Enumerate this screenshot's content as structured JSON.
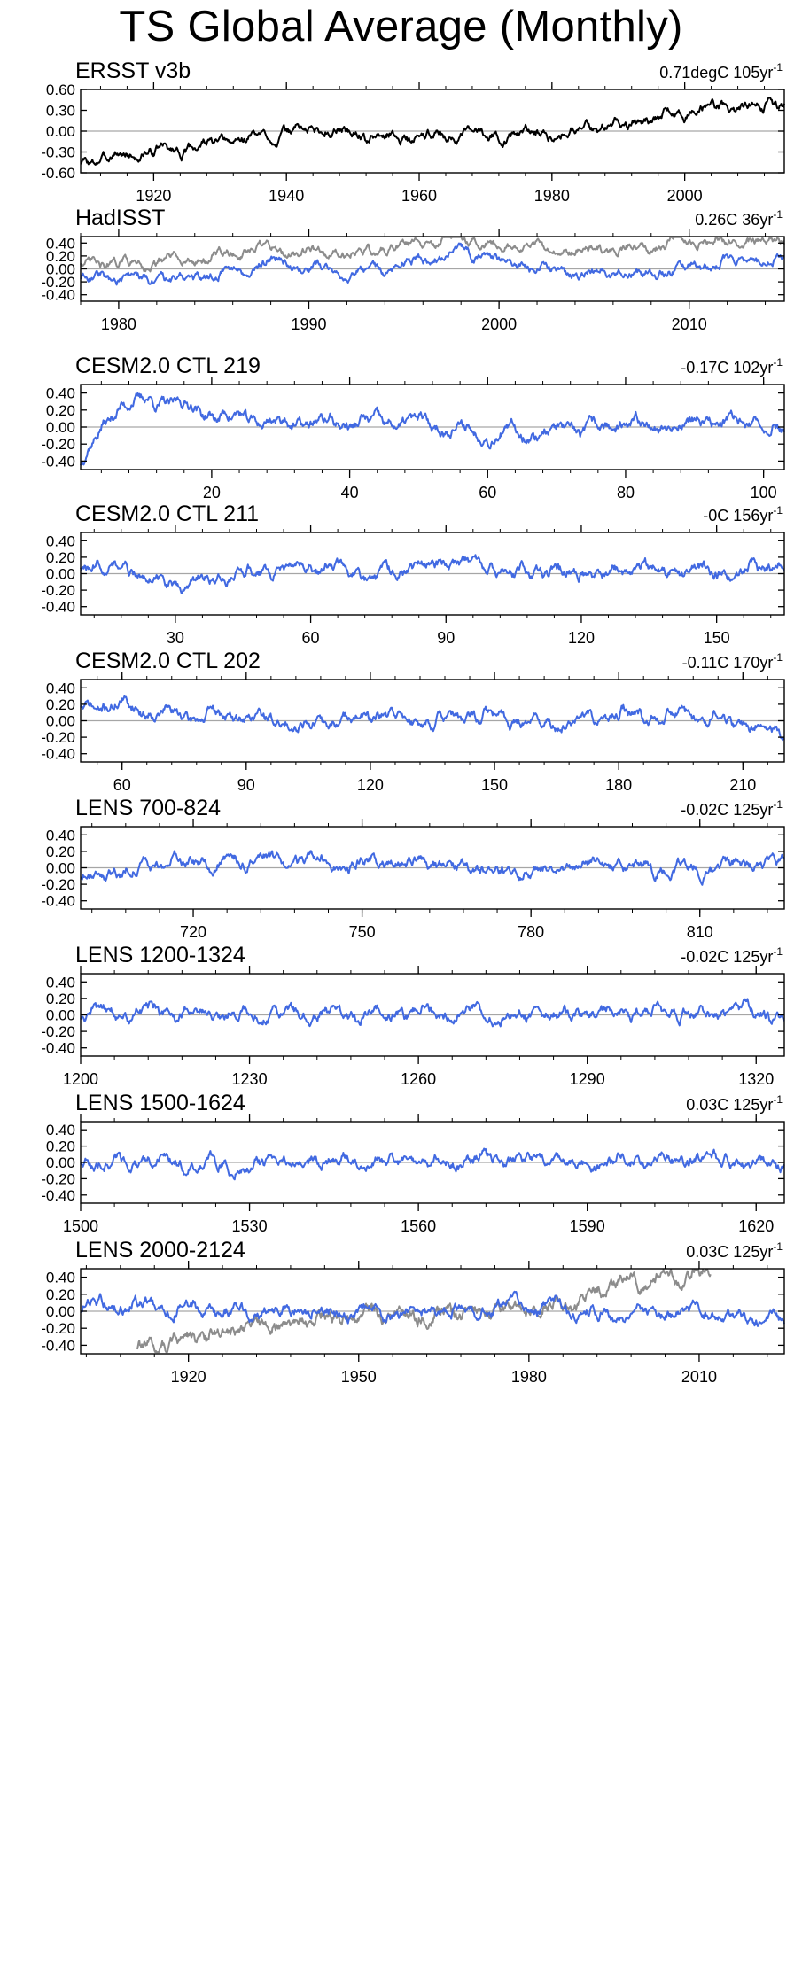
{
  "title": "TS Global Average (Monthly)",
  "colors": {
    "observed": "#000000",
    "model": "#4169E1",
    "reference": "#8c8c8c",
    "zero_line": "#a6a6a6",
    "frame": "#000000"
  },
  "chart_data": [
    {
      "type": "line",
      "title": "ERSST v3b",
      "trend_value": "0.71degC 105yr",
      "trend_exponent": "-1",
      "xlim": [
        1909,
        2015
      ],
      "ylim": [
        -0.6,
        0.6
      ],
      "xticks": [
        1920,
        1940,
        1960,
        1980,
        2000
      ],
      "xticklabels": [
        "1920",
        "1940",
        "1960",
        "1980",
        "2000"
      ],
      "yticks": [
        -0.6,
        -0.3,
        0.0,
        0.3,
        0.6
      ],
      "yticklabels": [
        "-0.60",
        "-0.30",
        "0.00",
        "0.30",
        "0.60"
      ],
      "series": [
        {
          "color": "#000000",
          "x": [
            1909,
            1915,
            1925,
            1935,
            1945,
            1955,
            1965,
            1975,
            1985,
            1995,
            2000,
            2005,
            2015
          ],
          "values": [
            -0.45,
            -0.35,
            -0.25,
            -0.1,
            0.05,
            -0.1,
            -0.05,
            -0.05,
            0.05,
            0.15,
            0.3,
            0.35,
            0.4
          ]
        }
      ]
    },
    {
      "type": "line",
      "title": "HadISST",
      "trend_value": "0.26C 36yr",
      "trend_exponent": "-1",
      "xlim": [
        1978,
        2015
      ],
      "ylim": [
        -0.5,
        0.5
      ],
      "xticks": [
        1980,
        1990,
        2000,
        2010
      ],
      "xticklabels": [
        "1980",
        "1990",
        "2000",
        "2010"
      ],
      "yticks": [
        -0.4,
        -0.2,
        0.0,
        0.2,
        0.4
      ],
      "yticklabels": [
        "-0.40",
        "-0.20",
        "0.00",
        "0.20",
        "0.40"
      ],
      "series": [
        {
          "color": "#8c8c8c",
          "x": [
            1978,
            1983,
            1988,
            1993,
            1998,
            2003,
            2008,
            2010,
            2015
          ],
          "values": [
            0.05,
            0.12,
            0.3,
            0.25,
            0.45,
            0.28,
            0.35,
            0.42,
            0.45
          ]
        },
        {
          "color": "#4169E1",
          "x": [
            1978,
            1983,
            1988,
            1993,
            1998,
            2003,
            2008,
            2010,
            2015
          ],
          "values": [
            -0.12,
            -0.18,
            0.1,
            -0.08,
            0.25,
            -0.05,
            -0.08,
            0.05,
            0.15
          ]
        }
      ]
    },
    {
      "type": "line",
      "title": "CESM2.0 CTL 219",
      "trend_value": "-0.17C 102yr",
      "trend_exponent": "-1",
      "xlim": [
        1,
        103
      ],
      "ylim": [
        -0.5,
        0.5
      ],
      "xticks": [
        20,
        40,
        60,
        80,
        100
      ],
      "xticklabels": [
        "20",
        "40",
        "60",
        "80",
        "100"
      ],
      "yticks": [
        -0.4,
        -0.2,
        0.0,
        0.2,
        0.4
      ],
      "yticklabels": [
        "-0.40",
        "-0.20",
        "0.00",
        "0.20",
        "0.40"
      ],
      "series": [
        {
          "color": "#4169E1",
          "x": [
            1,
            7,
            14,
            20,
            30,
            40,
            50,
            60,
            70,
            80,
            90,
            100,
            103
          ],
          "values": [
            -0.38,
            0.3,
            0.3,
            0.15,
            0.05,
            0.05,
            0.05,
            -0.08,
            -0.05,
            0.0,
            0.05,
            0.05,
            -0.05
          ]
        }
      ]
    },
    {
      "type": "line",
      "title": "CESM2.0 CTL 211",
      "trend_value": "-0C 156yr",
      "trend_exponent": "-1",
      "xlim": [
        9,
        165
      ],
      "ylim": [
        -0.5,
        0.5
      ],
      "xticks": [
        30,
        60,
        90,
        120,
        150
      ],
      "xticklabels": [
        "30",
        "60",
        "90",
        "120",
        "150"
      ],
      "yticks": [
        -0.4,
        -0.2,
        0.0,
        0.2,
        0.4
      ],
      "yticklabels": [
        "-0.40",
        "-0.20",
        "0.00",
        "0.20",
        "0.40"
      ],
      "series": [
        {
          "color": "#4169E1",
          "x": [
            9,
            20,
            30,
            40,
            60,
            75,
            90,
            105,
            120,
            135,
            150,
            165
          ],
          "values": [
            0.1,
            0.05,
            -0.15,
            -0.05,
            0.1,
            -0.05,
            0.15,
            0.0,
            0.0,
            0.05,
            0.0,
            0.1
          ]
        }
      ]
    },
    {
      "type": "line",
      "title": "CESM2.0 CTL 202",
      "trend_value": "-0.11C 170yr",
      "trend_exponent": "-1",
      "xlim": [
        50,
        220
      ],
      "ylim": [
        -0.5,
        0.5
      ],
      "xticks": [
        60,
        90,
        120,
        150,
        180,
        210
      ],
      "xticklabels": [
        "60",
        "90",
        "120",
        "150",
        "180",
        "210"
      ],
      "yticks": [
        -0.4,
        -0.2,
        0.0,
        0.2,
        0.4
      ],
      "yticklabels": [
        "-0.40",
        "-0.20",
        "0.00",
        "0.20",
        "0.40"
      ],
      "series": [
        {
          "color": "#4169E1",
          "x": [
            50,
            60,
            75,
            90,
            105,
            120,
            135,
            150,
            165,
            180,
            195,
            210,
            220
          ],
          "values": [
            0.15,
            0.2,
            0.05,
            0.05,
            -0.05,
            0.05,
            0.0,
            0.05,
            -0.05,
            0.05,
            0.1,
            -0.05,
            -0.15
          ]
        }
      ]
    },
    {
      "type": "line",
      "title": "LENS 700-824",
      "trend_value": "-0.02C 125yr",
      "trend_exponent": "-1",
      "xlim": [
        700,
        825
      ],
      "ylim": [
        -0.5,
        0.5
      ],
      "xticks": [
        720,
        750,
        780,
        810
      ],
      "xticklabels": [
        "720",
        "750",
        "780",
        "810"
      ],
      "yticks": [
        -0.4,
        -0.2,
        0.0,
        0.2,
        0.4
      ],
      "yticklabels": [
        "-0.40",
        "-0.20",
        "0.00",
        "0.20",
        "0.40"
      ],
      "series": [
        {
          "color": "#4169E1",
          "x": [
            700,
            715,
            730,
            745,
            760,
            775,
            790,
            805,
            825
          ],
          "values": [
            -0.1,
            0.05,
            0.05,
            0.05,
            0.05,
            -0.05,
            0.05,
            0.0,
            0.05
          ]
        }
      ]
    },
    {
      "type": "line",
      "title": "LENS 1200-1324",
      "trend_value": "-0.02C 125yr",
      "trend_exponent": "-1",
      "xlim": [
        1200,
        1325
      ],
      "ylim": [
        -0.5,
        0.5
      ],
      "xticks": [
        1200,
        1230,
        1260,
        1290,
        1320
      ],
      "xticklabels": [
        "1200",
        "1230",
        "1260",
        "1290",
        "1320"
      ],
      "yticks": [
        -0.4,
        -0.2,
        0.0,
        0.2,
        0.4
      ],
      "yticklabels": [
        "-0.40",
        "-0.20",
        "0.00",
        "0.20",
        "0.40"
      ],
      "series": [
        {
          "color": "#4169E1",
          "x": [
            1200,
            1215,
            1230,
            1245,
            1260,
            1275,
            1290,
            1305,
            1325
          ],
          "values": [
            0.0,
            0.05,
            0.0,
            0.0,
            0.05,
            0.0,
            0.0,
            0.05,
            0.0
          ]
        }
      ]
    },
    {
      "type": "line",
      "title": "LENS 1500-1624",
      "trend_value": "0.03C 125yr",
      "trend_exponent": "-1",
      "xlim": [
        1500,
        1625
      ],
      "ylim": [
        -0.5,
        0.5
      ],
      "xticks": [
        1500,
        1530,
        1560,
        1590,
        1620
      ],
      "xticklabels": [
        "1500",
        "1530",
        "1560",
        "1590",
        "1620"
      ],
      "yticks": [
        -0.4,
        -0.2,
        0.0,
        0.2,
        0.4
      ],
      "yticklabels": [
        "-0.40",
        "-0.20",
        "0.00",
        "0.20",
        "0.40"
      ],
      "series": [
        {
          "color": "#4169E1",
          "x": [
            1500,
            1515,
            1530,
            1545,
            1560,
            1575,
            1590,
            1605,
            1625
          ],
          "values": [
            0.0,
            0.0,
            -0.05,
            0.05,
            0.0,
            0.05,
            0.0,
            0.05,
            0.0
          ]
        }
      ]
    },
    {
      "type": "line",
      "title": "LENS 2000-2124",
      "trend_value": "0.03C 125yr",
      "trend_exponent": "-1",
      "xlim": [
        1901,
        2025
      ],
      "ylim": [
        -0.5,
        0.5
      ],
      "xticks": [
        1920,
        1950,
        1980,
        2010
      ],
      "xticklabels": [
        "1920",
        "1950",
        "1980",
        "2010"
      ],
      "yticks": [
        -0.4,
        -0.2,
        0.0,
        0.2,
        0.4
      ],
      "yticklabels": [
        "-0.40",
        "-0.20",
        "0.00",
        "0.20",
        "0.40"
      ],
      "series": [
        {
          "color": "#8c8c8c",
          "x": [
            1911,
            1920,
            1930,
            1940,
            1950,
            1960,
            1970,
            1980,
            1990,
            1997,
            2000,
            2005,
            2012
          ],
          "values": [
            -0.48,
            -0.3,
            -0.2,
            -0.1,
            -0.05,
            -0.05,
            0.0,
            0.05,
            0.15,
            0.4,
            0.35,
            0.4,
            0.5
          ]
        },
        {
          "color": "#4169E1",
          "x": [
            1901,
            1910,
            1920,
            1930,
            1940,
            1950,
            1960,
            1970,
            1980,
            1990,
            2000,
            2010,
            2025
          ],
          "values": [
            0.05,
            0.1,
            0.0,
            0.0,
            0.05,
            -0.05,
            0.0,
            0.0,
            0.05,
            0.0,
            -0.05,
            0.0,
            -0.15
          ]
        }
      ]
    }
  ]
}
